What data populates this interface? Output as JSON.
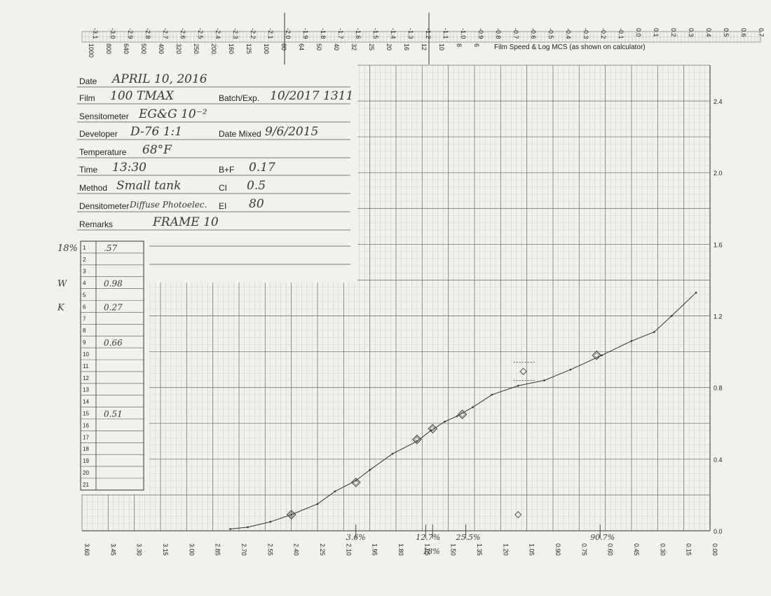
{
  "header": {
    "caption": "Film Speed & Log MCS (as shown on calculator)",
    "speed_scale": [
      "-3.1",
      "-3.0",
      "-2.9",
      "-2.8",
      "-2.7",
      "-2.6",
      "-2.5",
      "-2.4",
      "-2.3",
      "-2.2",
      "-2.1",
      "-2.0",
      "-1.9",
      "-1.8",
      "-1.7",
      "-1.6",
      "-1.5",
      "-1.4",
      "-1.3",
      "-1.2",
      "-1.1",
      "-1.0",
      "-0.9",
      "-0.8",
      "-0.7",
      "-0.6",
      "-0.5",
      "-0.4",
      "-0.3",
      "-0.2",
      "-0.1",
      "0.0",
      "0.1",
      "0.2",
      "0.3",
      "0.4",
      "0.5",
      "0.6",
      "0.7"
    ],
    "iso_scale": [
      "1000",
      "800",
      "640",
      "500",
      "400",
      "320",
      "250",
      "200",
      "160",
      "125",
      "100",
      "80",
      "64",
      "50",
      "40",
      "32",
      "25",
      "20",
      "16",
      "12",
      "10",
      "8",
      "6"
    ]
  },
  "form": {
    "labels": {
      "date": "Date",
      "film": "Film",
      "batch": "Batch/Exp.",
      "sensitometer": "Sensitometer",
      "developer": "Developer",
      "date_mixed": "Date Mixed",
      "temperature": "Temperature",
      "time": "Time",
      "bf": "B+F",
      "method": "Method",
      "ci": "CI",
      "densitometer": "Densitometer",
      "ei": "EI",
      "remarks": "Remarks"
    },
    "values": {
      "date": "APRIL 10, 2016",
      "film": "100 TMAX",
      "batch": "10/2017 1311",
      "sensitometer": "EG&G 10⁻²",
      "developer": "D-76 1:1",
      "date_mixed": "9/6/2015",
      "temperature": "68°F",
      "time": "13:30",
      "bf": "0.17",
      "method": "Small tank",
      "ci": "0.5",
      "densitometer": "Diffuse Photoelec.",
      "ei": "80",
      "remarks": "FRAME 10"
    }
  },
  "readings": {
    "rows": [
      "1",
      "2",
      "3",
      "4",
      "5",
      "6",
      "7",
      "8",
      "9",
      "10",
      "11",
      "12",
      "13",
      "14",
      "15",
      "16",
      "17",
      "18",
      "19",
      "20",
      "21"
    ],
    "values": [
      {
        "row": 1,
        "value": ".57"
      },
      {
        "row": 4,
        "value": "0.98"
      },
      {
        "row": 6,
        "value": "0.27"
      },
      {
        "row": 9,
        "value": "0.66"
      },
      {
        "row": 15,
        "value": "0.51"
      }
    ],
    "margin_notes": [
      {
        "row": 1,
        "text": "18%"
      },
      {
        "row": 4,
        "text": "W"
      },
      {
        "row": 6,
        "text": "K"
      }
    ]
  },
  "chart_data": {
    "type": "line",
    "x_axis": {
      "reversed": true,
      "range": [
        3.6,
        0.0
      ],
      "ticks": [
        "3.60",
        "3.45",
        "3.30",
        "3.15",
        "3.00",
        "2.85",
        "2.70",
        "2.55",
        "2.40",
        "2.25",
        "2.10",
        "1.95",
        "1.80",
        "1.65",
        "1.50",
        "1.35",
        "1.20",
        "1.05",
        "0.90",
        "0.75",
        "0.60",
        "0.45",
        "0.30",
        "0.15",
        "0.00"
      ]
    },
    "y_axis": {
      "range": [
        0.0,
        2.6
      ],
      "ticks": [
        "0.0",
        "0.4",
        "0.8",
        "1.2",
        "1.6",
        "2.0",
        "2.4"
      ]
    },
    "grid": true,
    "curve": [
      [
        2.75,
        0.01
      ],
      [
        2.65,
        0.02
      ],
      [
        2.52,
        0.05
      ],
      [
        2.4,
        0.09
      ],
      [
        2.25,
        0.15
      ],
      [
        2.15,
        0.22
      ],
      [
        2.03,
        0.28
      ],
      [
        1.95,
        0.34
      ],
      [
        1.82,
        0.43
      ],
      [
        1.68,
        0.5
      ],
      [
        1.6,
        0.56
      ],
      [
        1.52,
        0.61
      ],
      [
        1.45,
        0.64
      ],
      [
        1.36,
        0.69
      ],
      [
        1.25,
        0.76
      ],
      [
        1.1,
        0.81
      ],
      [
        0.95,
        0.84
      ],
      [
        0.8,
        0.9
      ],
      [
        0.62,
        0.98
      ],
      [
        0.45,
        1.06
      ],
      [
        0.32,
        1.11
      ],
      [
        0.22,
        1.2
      ],
      [
        0.08,
        1.33
      ]
    ],
    "measured_points": [
      [
        2.4,
        0.09
      ],
      [
        2.03,
        0.27
      ],
      [
        1.68,
        0.51
      ],
      [
        1.59,
        0.57
      ],
      [
        1.42,
        0.65
      ],
      [
        0.65,
        0.98
      ]
    ],
    "outlier_points": [
      [
        1.07,
        0.89
      ],
      [
        1.1,
        0.09
      ]
    ],
    "annotations": [
      {
        "x": 2.03,
        "text": "3.6%"
      },
      {
        "x": 1.63,
        "text": "12.7%"
      },
      {
        "x": 1.59,
        "text": "18%"
      },
      {
        "x": 1.4,
        "text": "25.5%"
      },
      {
        "x": 0.63,
        "text": "90.7%"
      }
    ]
  }
}
